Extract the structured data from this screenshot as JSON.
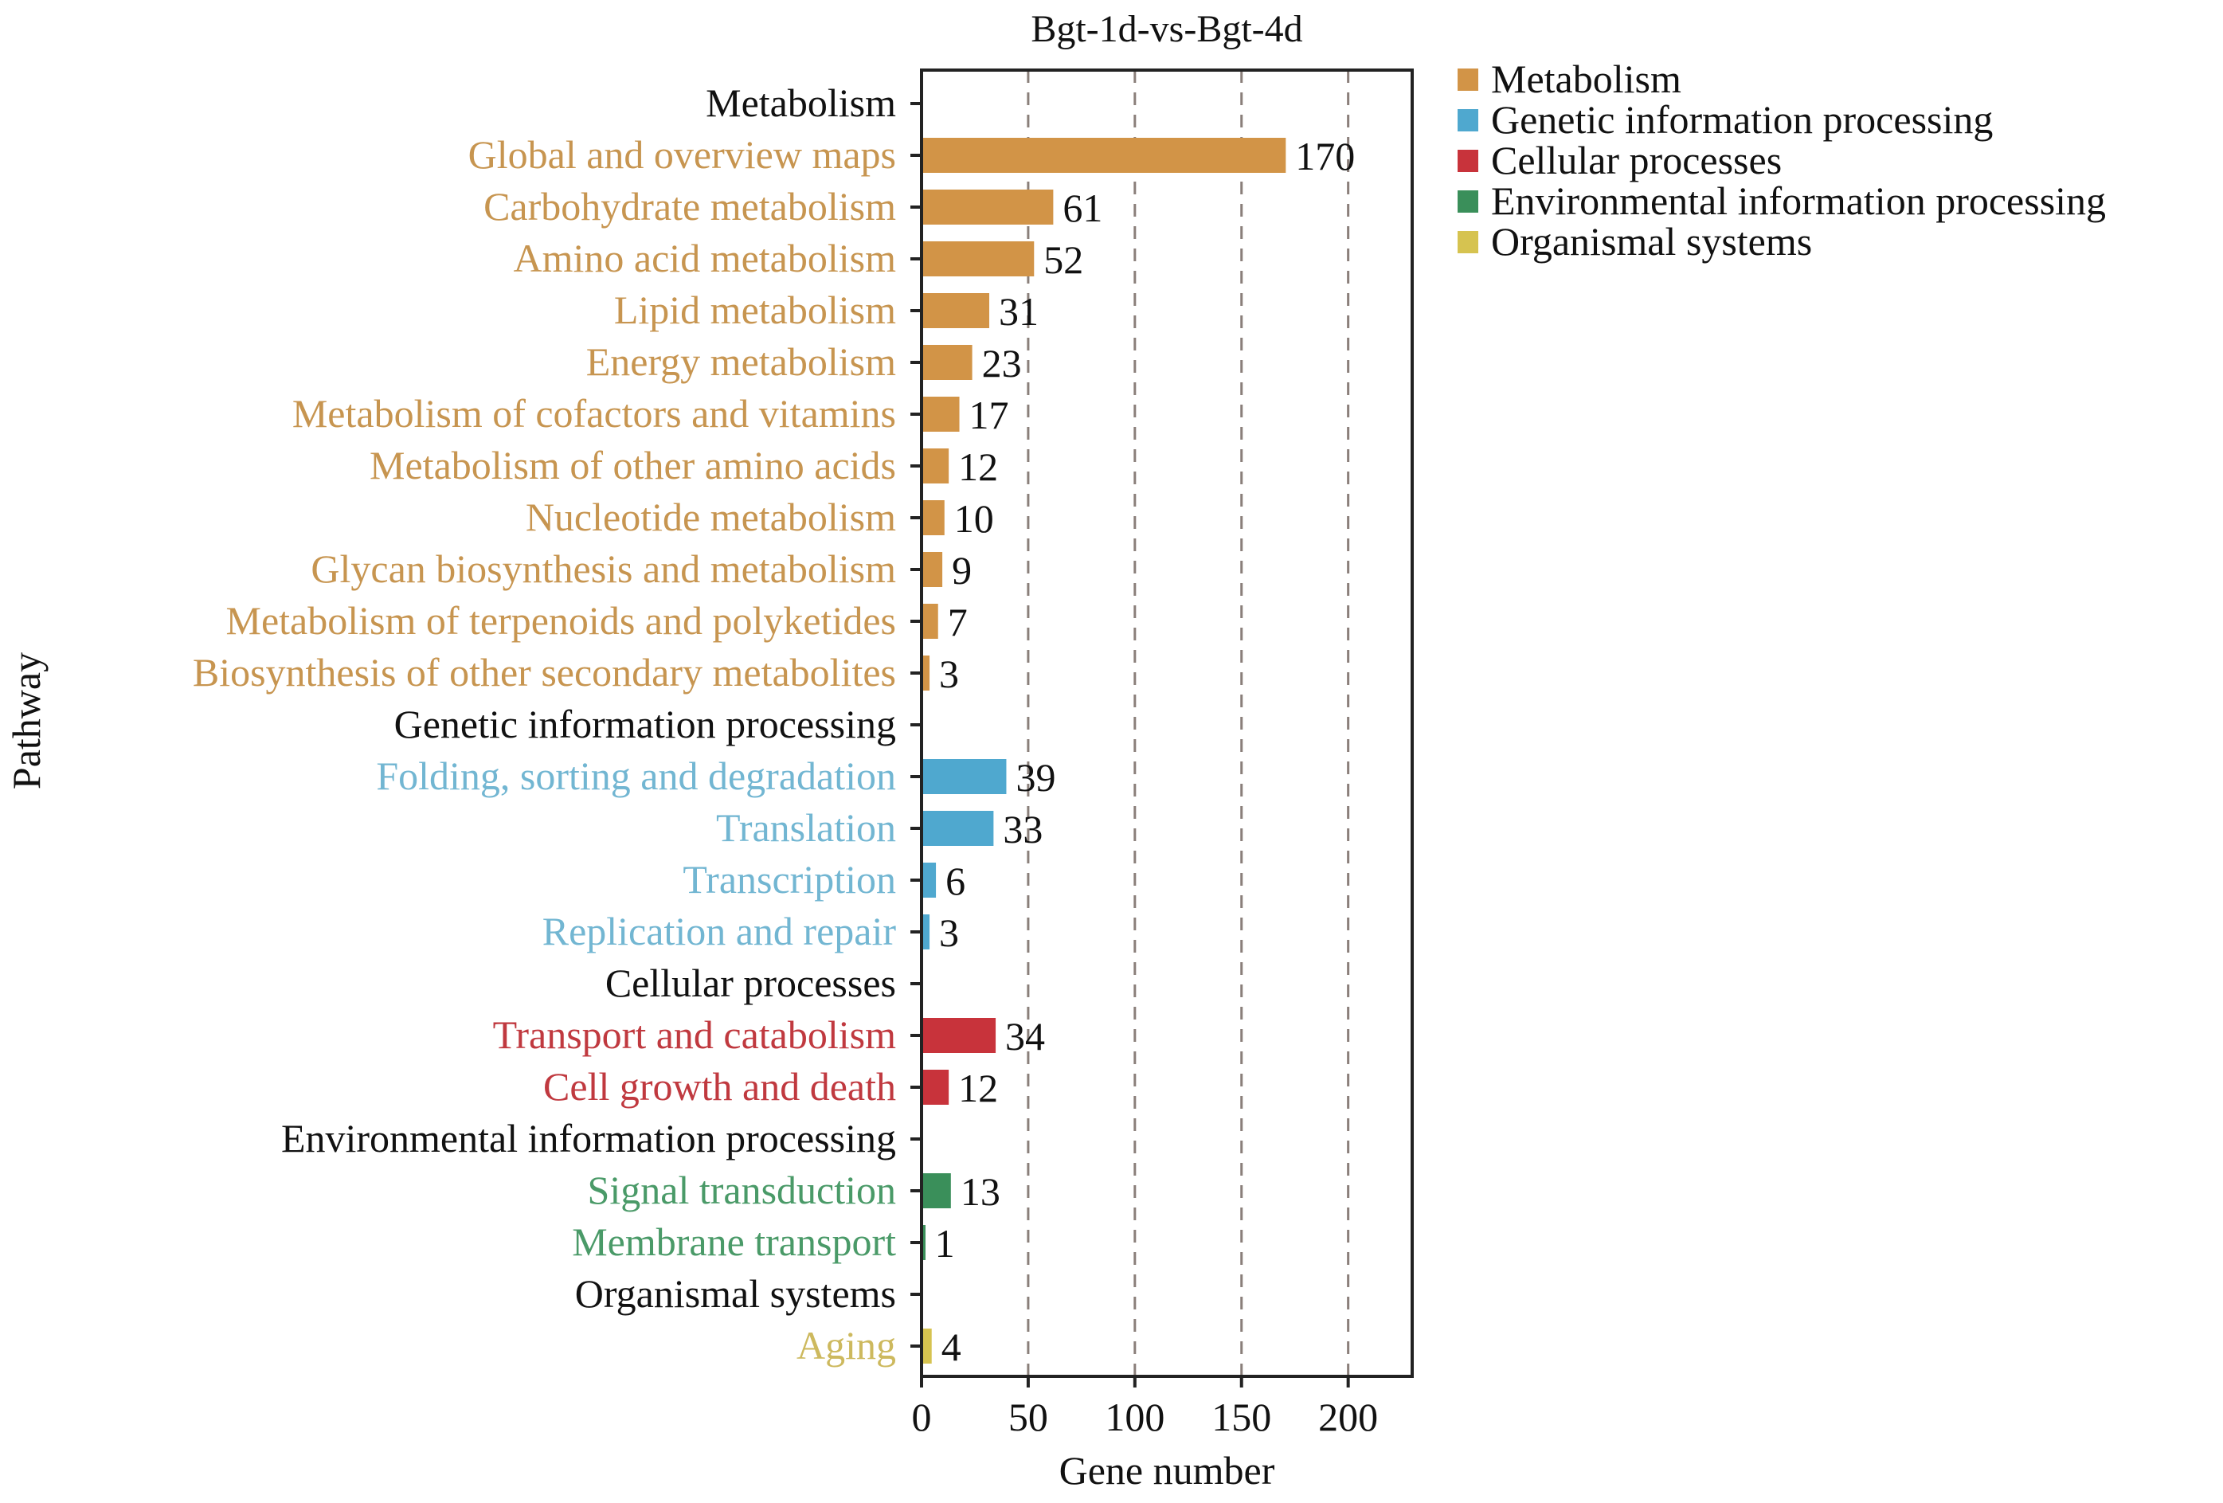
{
  "chart_data": {
    "type": "bar",
    "orientation": "horizontal",
    "title": "Bgt-1d-vs-Bgt-4d",
    "xlabel": "Gene number",
    "ylabel": "Pathway",
    "xlim": [
      0,
      230
    ],
    "xticks": [
      0,
      50,
      100,
      150,
      200
    ],
    "grid": "vertical dashed at 50, 100, 150, 200",
    "legend_position": "right-top",
    "colors": {
      "Metabolism": "#d29447",
      "Genetic information processing": "#4fa8cf",
      "Cellular processes": "#c8333b",
      "Environmental information processing": "#3a8f5a",
      "Organismal systems": "#d6c350",
      "header": "#111111"
    },
    "label_colors": {
      "Metabolism": "#c79550",
      "Genetic information processing": "#72b6d2",
      "Cellular processes": "#c0393f",
      "Environmental information processing": "#4a9a68",
      "Organismal systems": "#cdb95e"
    },
    "legend": [
      {
        "label": "Metabolism",
        "group": "Metabolism"
      },
      {
        "label": "Genetic information processing",
        "group": "Genetic information processing"
      },
      {
        "label": "Cellular processes",
        "group": "Cellular processes"
      },
      {
        "label": "Environmental information processing",
        "group": "Environmental information processing"
      },
      {
        "label": "Organismal systems",
        "group": "Organismal systems"
      }
    ],
    "rows": [
      {
        "label": "Metabolism",
        "header": true,
        "group": "Metabolism"
      },
      {
        "label": "Global and overview maps",
        "value": 170,
        "group": "Metabolism"
      },
      {
        "label": "Carbohydrate metabolism",
        "value": 61,
        "group": "Metabolism"
      },
      {
        "label": "Amino acid metabolism",
        "value": 52,
        "group": "Metabolism"
      },
      {
        "label": "Lipid metabolism",
        "value": 31,
        "group": "Metabolism"
      },
      {
        "label": "Energy metabolism",
        "value": 23,
        "group": "Metabolism"
      },
      {
        "label": "Metabolism of cofactors and vitamins",
        "value": 17,
        "group": "Metabolism"
      },
      {
        "label": "Metabolism of other amino acids",
        "value": 12,
        "group": "Metabolism"
      },
      {
        "label": "Nucleotide metabolism",
        "value": 10,
        "group": "Metabolism"
      },
      {
        "label": "Glycan biosynthesis and metabolism",
        "value": 9,
        "group": "Metabolism"
      },
      {
        "label": "Metabolism of terpenoids and polyketides",
        "value": 7,
        "group": "Metabolism"
      },
      {
        "label": "Biosynthesis of other secondary metabolites",
        "value": 3,
        "group": "Metabolism"
      },
      {
        "label": "Genetic information processing",
        "header": true,
        "group": "Genetic information processing"
      },
      {
        "label": "Folding, sorting and degradation",
        "value": 39,
        "group": "Genetic information processing"
      },
      {
        "label": "Translation",
        "value": 33,
        "group": "Genetic information processing"
      },
      {
        "label": "Transcription",
        "value": 6,
        "group": "Genetic information processing"
      },
      {
        "label": "Replication and repair",
        "value": 3,
        "group": "Genetic information processing"
      },
      {
        "label": "Cellular processes",
        "header": true,
        "group": "Cellular processes"
      },
      {
        "label": "Transport and catabolism",
        "value": 34,
        "group": "Cellular processes"
      },
      {
        "label": "Cell growth and death",
        "value": 12,
        "group": "Cellular processes"
      },
      {
        "label": "Environmental information processing",
        "header": true,
        "group": "Environmental information processing"
      },
      {
        "label": "Signal transduction",
        "value": 13,
        "group": "Environmental information processing"
      },
      {
        "label": "Membrane transport",
        "value": 1,
        "group": "Environmental information processing"
      },
      {
        "label": "Organismal systems",
        "header": true,
        "group": "Organismal systems"
      },
      {
        "label": "Aging",
        "value": 4,
        "group": "Organismal systems"
      }
    ]
  }
}
